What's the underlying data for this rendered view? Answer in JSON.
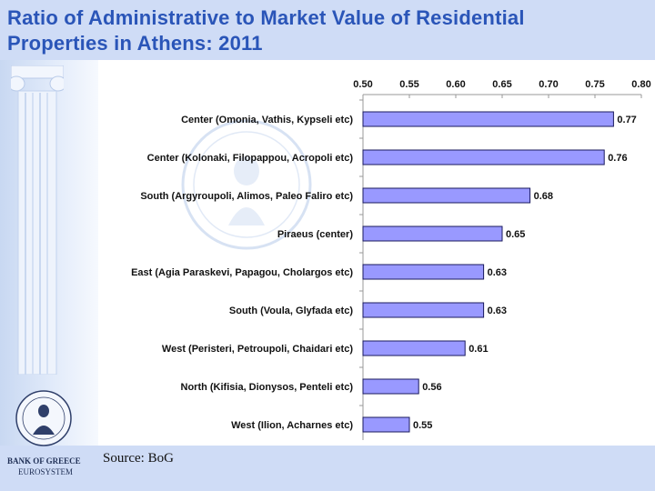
{
  "slide": {
    "title_line1": "Ratio of Administrative to Market Value of Residential",
    "title_line2": "Properties in Athens: 2011",
    "source": "Source: BoG",
    "bank_name": "BANK OF GREECE",
    "bank_sub": "EUROSYSTEM"
  },
  "colors": {
    "title": "#2a55b8",
    "band": "#cfdcf6",
    "bar_fill": "#9999ff",
    "bar_stroke": "#1a1a5e"
  },
  "chart_data": {
    "type": "bar",
    "orientation": "horizontal",
    "title": "",
    "xlabel": "",
    "ylabel": "",
    "xlim": [
      0.5,
      0.8
    ],
    "axis_position": "top",
    "ticks": [
      "0.50",
      "0.55",
      "0.60",
      "0.65",
      "0.70",
      "0.75",
      "0.80"
    ],
    "categories": [
      "Center (Omonia, Vathis, Kypseli etc)",
      "Center (Kolonaki, Filopappou, Acropoli etc)",
      "South (Argyroupoli, Alimos, Paleo Faliro etc)",
      "Piraeus (center)",
      "East (Agia Paraskevi, Papagou, Cholargos etc)",
      "South (Voula, Glyfada etc)",
      "West (Peristeri, Petroupoli, Chaidari etc)",
      "North (Kifisia, Dionysos, Penteli etc)",
      "West (Ilion, Acharnes etc)"
    ],
    "values": [
      0.77,
      0.76,
      0.68,
      0.65,
      0.63,
      0.63,
      0.61,
      0.56,
      0.55
    ],
    "value_labels": [
      "0.77",
      "0.76",
      "0.68",
      "0.65",
      "0.63",
      "0.63",
      "0.61",
      "0.56",
      "0.55"
    ],
    "grid": false,
    "legend": "none"
  }
}
